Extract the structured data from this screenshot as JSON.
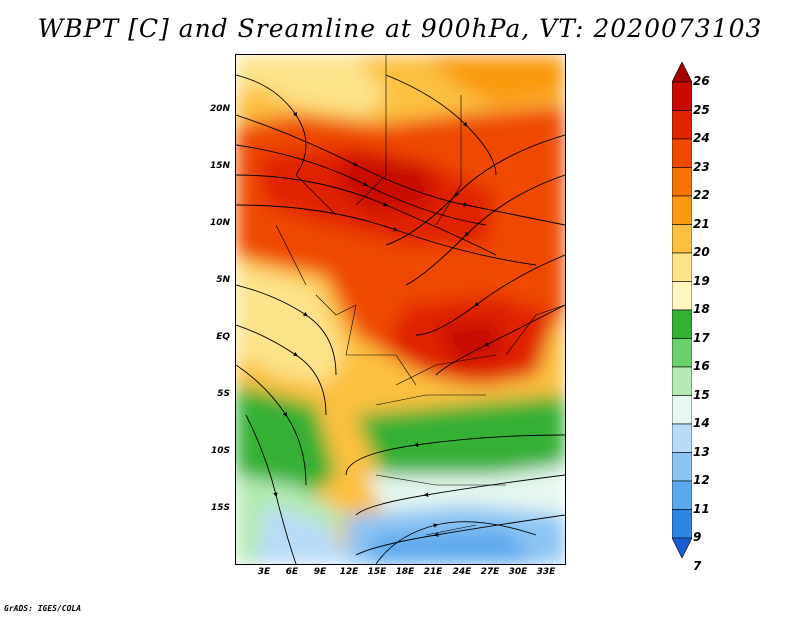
{
  "title": "WBPT [C] and Sreamline at 900hPa, VT: 2020073103",
  "credit": "GrADS: IGES/COLA",
  "map": {
    "lat_labels": [
      "20N",
      "15N",
      "10N",
      "5N",
      "EQ",
      "5S",
      "10S",
      "15S"
    ],
    "lon_labels": [
      "3E",
      "6E",
      "9E",
      "12E",
      "15E",
      "18E",
      "21E",
      "24E",
      "27E",
      "30E",
      "33E"
    ]
  },
  "legend": {
    "levels": [
      "26",
      "25",
      "24",
      "23",
      "22",
      "21",
      "20",
      "19",
      "18",
      "17",
      "16",
      "15",
      "14",
      "13",
      "12",
      "11",
      "9",
      "7"
    ],
    "colors": [
      "#a50000",
      "#c80a00",
      "#e02400",
      "#ef4a00",
      "#f57400",
      "#fa9a10",
      "#fcc040",
      "#fde38a",
      "#fef6c0",
      "#34b034",
      "#6cd06c",
      "#b4eab4",
      "#e6f8f0",
      "#b8dcf8",
      "#8cc4f4",
      "#5ca8ee",
      "#2e84e2",
      "#1a5cd0"
    ]
  }
}
